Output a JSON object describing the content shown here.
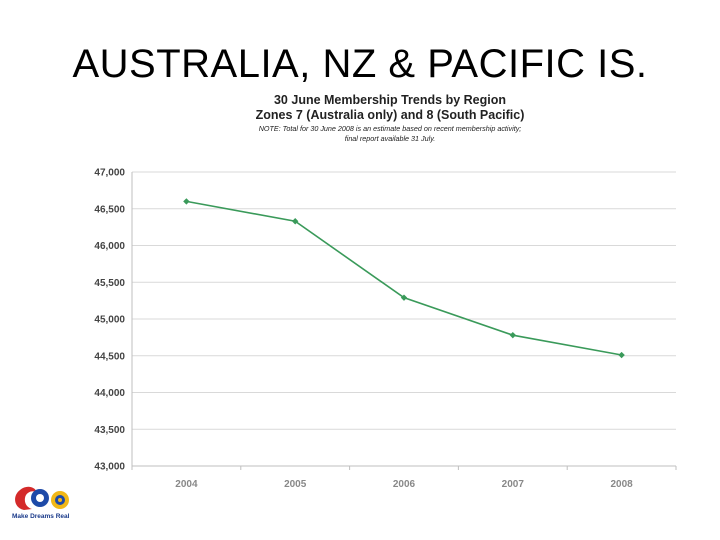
{
  "slide": {
    "title": "AUSTRALIA, NZ & PACIFIC IS."
  },
  "logo": {
    "tagline": "Make Dreams Real"
  },
  "colors": {
    "line": "#3a9a5a",
    "grid": "#d9d9d9",
    "axis_text": "#444444",
    "x_tick_text": "#888888"
  },
  "chart_data": {
    "type": "line",
    "title": "30 June Membership Trends by Region",
    "subtitle": "Zones 7 (Australia only) and 8 (South Pacific)",
    "note_line1": "NOTE:  Total for 30 June 2008 is an estimate based on recent membership activity;",
    "note_line2": "final report available 31 July.",
    "categories": [
      "2004",
      "2005",
      "2006",
      "2007",
      "2008"
    ],
    "series": [
      {
        "values": [
          46600,
          46330,
          45290,
          44780,
          44510
        ]
      }
    ],
    "ylim": [
      43000,
      47000
    ],
    "yticks": [
      43000,
      43500,
      44000,
      44500,
      45000,
      45500,
      46000,
      46500,
      47000
    ],
    "ytick_labels": [
      "43,000",
      "43,500",
      "44,000",
      "44,500",
      "45,000",
      "45,500",
      "46,000",
      "46,500",
      "47,000"
    ],
    "xlabel": "",
    "ylabel": "",
    "grid": true,
    "legend": "none"
  }
}
